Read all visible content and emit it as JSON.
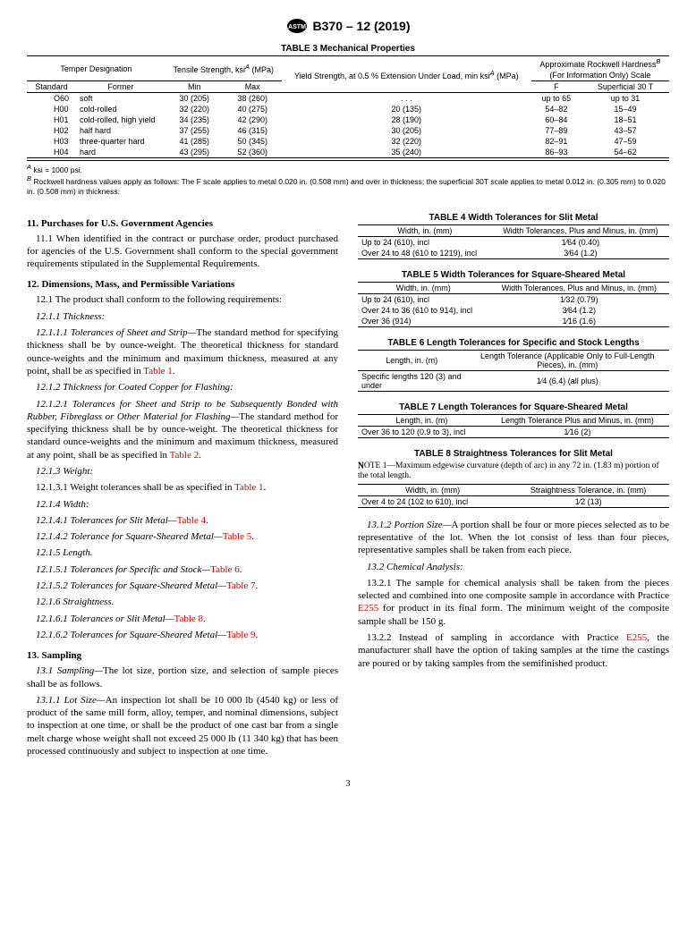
{
  "header": {
    "designation": "B370 – 12 (2019)"
  },
  "table3": {
    "title": "TABLE 3 Mechanical Properties",
    "headers": {
      "temper": "Temper Designation",
      "tensile": "Tensile Strength, ksi",
      "tensile_sup": "A",
      "tensile_unit": " (MPa)",
      "yield": "Yield Strength, at 0.5 % Extension Under Load, min ksi",
      "yield_sup": "A",
      "yield_unit": " (MPa)",
      "rockwell": "Approximate Rockwell Hardness",
      "rockwell_sup": "B",
      "rockwell_sub": "(For Information Only) Scale",
      "standard": "Standard",
      "former": "Former",
      "min": "Min",
      "max": "Max",
      "f": "F",
      "s30t": "Superficial 30 T"
    },
    "rows": [
      {
        "std": "O60",
        "former": "soft",
        "min": "30 (205)",
        "max": "38 (260)",
        "yield": ". . .",
        "f": "up to 65",
        "s30t": "up to 31"
      },
      {
        "std": "H00",
        "former": "cold-rolled",
        "min": "32 (220)",
        "max": "40 (275)",
        "yield": "20 (135)",
        "f": "54–82",
        "s30t": "15–49"
      },
      {
        "std": "H01",
        "former": "cold-rolled, high yield",
        "min": "34 (235)",
        "max": "42 (290)",
        "yield": "28 (190)",
        "f": "60–84",
        "s30t": "18–51"
      },
      {
        "std": "H02",
        "former": "half hard",
        "min": "37 (255)",
        "max": "46 (315)",
        "yield": "30 (205)",
        "f": "77–89",
        "s30t": "43–57"
      },
      {
        "std": "H03",
        "former": "three-quarter hard",
        "min": "41 (285)",
        "max": "50 (345)",
        "yield": "32 (220)",
        "f": "82–91",
        "s30t": "47–59"
      },
      {
        "std": "H04",
        "former": "hard",
        "min": "43 (295)",
        "max": "52 (360)",
        "yield": "35 (240)",
        "f": "86–93",
        "s30t": "54–62"
      }
    ],
    "footA": " ksi = 1000 psi.",
    "footB": " Rockwell hardness values apply as follows: The F scale applies to metal 0.020 in. (0.508 mm) and over in thickness; the superficial 30T scale applies to metal 0.012 in. (0.305 mm) to 0.020 in. (0.508 mm) in thickness."
  },
  "sec11": {
    "title": "11. Purchases for U.S. Government Agencies",
    "p1": "11.1 When identified in the contract or purchase order, product purchased for agencies of the U.S. Government shall conform to the special government requirements stipulated in the Supplemental Requirements."
  },
  "sec12": {
    "title": "12. Dimensions, Mass, and Permissible Variations",
    "p1": "12.1 The product shall conform to the following requirements:",
    "p2": "12.1.1 Thickness:",
    "p3a": "12.1.1.1 Tolerances of Sheet and Strip—",
    "p3b": "The standard method for specifying thickness shall be by ounce-weight. The theoretical thickness for standard ounce-weights and the minimum and maximum thickness, measured at any point, shall be as specified in ",
    "p3c": "Table 1",
    "p3d": ".",
    "p4": "12.1.2 Thickness for Coated Copper for Flashing:",
    "p5a": "12.1.2.1 Tolerances for Sheet and Strip to be Subsequently Bonded with Rubber, Fibreglass or Other Material for Flashing—",
    "p5b": "The standard method for specifying thickness shall be by ounce-weight. The theoretical thickness for standard ounce-weights and the minimum and maximum thickness, measured at any point, shall be as specified in ",
    "p5c": "Table 2",
    "p5d": ".",
    "p6": "12.1.3 Weight:",
    "p7a": "12.1.3.1 Weight tolerances shall be as specified in ",
    "p7b": "Table 1",
    "p7c": ".",
    "p8": "12.1.4 Width:",
    "p9a": "12.1.4.1 Tolerances for Slit Metal—",
    "p9b": "Table 4",
    "p9c": ".",
    "p10a": "12.1.4.2 Tolerance for Square-Sheared Metal—",
    "p10b": "Table 5",
    "p10c": ".",
    "p11": "12.1.5 Length.",
    "p12a": "12.1.5.1 Tolerances for Specific and Stock—",
    "p12b": "Table 6",
    "p12c": ".",
    "p13a": "12.1.5.2 Tolerances for Square-Sheared Metal—",
    "p13b": "Table 7",
    "p13c": ".",
    "p14": "12.1.6 Straightness.",
    "p15a": "12.1.6.1 Tolerances or Slit Metal—",
    "p15b": "Table 8",
    "p15c": ".",
    "p16a": "12.1.6.2 Tolerances for Square-Sheared Metal—",
    "p16b": "Table 9",
    "p16c": "."
  },
  "sec13": {
    "title": "13. Sampling",
    "p1a": "13.1 Sampling—",
    "p1b": "The lot size, portion size, and selection of sample pieces shall be as follows.",
    "p2a": "13.1.1 Lot Size—",
    "p2b": "An inspection lot shall be 10 000 lb (4540 kg) or less of product of the same mill form, alloy, temper, and nominal dimensions, subject to inspection at one time, or shall be the product of one cast bar from a single melt charge whose weight shall not exceed 25 000 lb (11 340 kg) that has been processed continuously and subject to inspection at one time.",
    "p3a": "13.1.2 Portion Size—",
    "p3b": "A portion shall be four or more pieces selected as to be representative of the lot. When the lot consist of less than four pieces, representative samples shall be taken from each piece.",
    "p4": "13.2 Chemical Analysis:",
    "p5a": "13.2.1 The sample for chemical analysis shall be taken from the pieces selected and combined into one composite sample in accordance with Practice ",
    "p5b": "E255",
    "p5c": " for product in its final form. The minimum weight of the composite sample shall be 150 g.",
    "p6a": "13.2.2 Instead of sampling in accordance with Practice ",
    "p6b": "E255",
    "p6c": ", the manufacturer shall have the option of taking samples at the time the castings are poured or by taking samples from the semifinished product."
  },
  "table4": {
    "title": "TABLE 4 Width Tolerances for Slit Metal",
    "h1": "Width, in. (mm)",
    "h2": "Width Tolerances, Plus and Minus, in. (mm)",
    "rows": [
      {
        "a": "Up to 24 (610), incl",
        "b": "1⁄64 (0.40)"
      },
      {
        "a": "Over 24 to 48 (610 to 1219), incl",
        "b": "3⁄64 (1.2)"
      }
    ]
  },
  "table5": {
    "title": "TABLE 5 Width Tolerances for Square-Sheared Metal",
    "h1": "Width, in. (mm)",
    "h2": "Width Tolerances, Plus and Minus, in. (mm)",
    "rows": [
      {
        "a": "Up to 24 (610), incl",
        "b": "1⁄32 (0.79)"
      },
      {
        "a": "Over 24 to 36 (610 to 914), incl",
        "b": "3⁄64 (1.2)"
      },
      {
        "a": "Over 36 (914)",
        "b": "1⁄16 (1.6)"
      }
    ]
  },
  "table6": {
    "title": "TABLE 6 Length Tolerances for Specific and Stock Lengths",
    "h1": "Length, in. (m)",
    "h2": "Length Tolerance (Applicable Only to Full-Length Pieces), in. (mm)",
    "rows": [
      {
        "a": "Specific lengths 120 (3) and under",
        "b": "1⁄4 (6.4) (all plus)"
      }
    ]
  },
  "table7": {
    "title": "TABLE 7 Length Tolerances for Square-Sheared Metal",
    "h1": "Length, in. (m)",
    "h2": "Length Tolerance Plus and Minus, in. (mm)",
    "rows": [
      {
        "a": "Over 36 to 120 (0.9 to 3), incl",
        "b": "1⁄16 (2)"
      }
    ]
  },
  "table8": {
    "title": "TABLE 8 Straightness Tolerances for Slit Metal",
    "note": "NOTE 1—Maximum edgewise curvature (depth of arc) in any 72 in. (1.83 m) portion of the total length.",
    "h1": "Width, in. (mm)",
    "h2": "Straightness Tolerance, in. (mm)",
    "rows": [
      {
        "a": "Over 4 to 24 (102 to 610), incl",
        "b": "1⁄2 (13)"
      }
    ]
  },
  "pagenum": "3"
}
